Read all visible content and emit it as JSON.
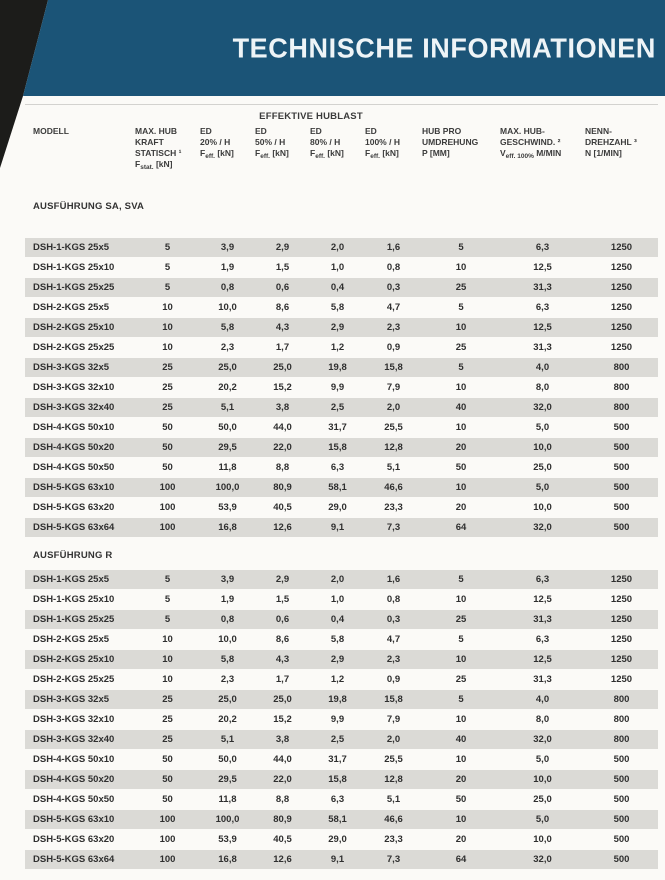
{
  "page": {
    "title": "TECHNISCHE INFORMATIONEN"
  },
  "colors": {
    "accent_blue": "#1b5477",
    "row_shade": "#dbdad6",
    "page_edge_black": "#1c1c1a"
  },
  "table": {
    "group_header": "EFFEKTIVE HUBLAST",
    "columns": {
      "modell": {
        "label": "MODELL"
      },
      "stat": {
        "lines": [
          "MAX. HUB",
          "KRAFT",
          "STATISCH ¹"
        ],
        "formula": {
          "base": "F",
          "sub": "stat.",
          "rest": " [kN]"
        }
      },
      "ed20": {
        "lines": [
          "ED",
          "20% / H"
        ],
        "formula": {
          "base": "F",
          "sub": "eff.",
          "rest": " [kN]"
        }
      },
      "ed50": {
        "lines": [
          "ED",
          "50% / H"
        ],
        "formula": {
          "base": "F",
          "sub": "eff.",
          "rest": " [kN]"
        }
      },
      "ed80": {
        "lines": [
          "ED",
          "80% / H"
        ],
        "formula": {
          "base": "F",
          "sub": "eff.",
          "rest": " [kN]"
        }
      },
      "ed100": {
        "lines": [
          "ED",
          "100% / H"
        ],
        "formula": {
          "base": "F",
          "sub": "eff.",
          "rest": " [kN]"
        }
      },
      "hub": {
        "lines": [
          "HUB PRO",
          "UMDREHUNG"
        ],
        "formula": {
          "base": "P [MM]",
          "sub": "",
          "rest": ""
        }
      },
      "speed": {
        "lines": [
          "MAX. HUB-",
          "GESCHWIND. ²"
        ],
        "formula": {
          "base": "V",
          "sub": "eff. 100%",
          "rest": " M/MIN"
        }
      },
      "nenn": {
        "lines": [
          "NENN-",
          "DREHZAHL ³"
        ],
        "formula": {
          "base": "N [1/MIN]",
          "sub": "",
          "rest": ""
        }
      }
    },
    "sections": [
      {
        "label": "AUSFÜHRUNG SA, SVA",
        "rows": [
          [
            "DSH-1-KGS 25x5",
            "5",
            "3,9",
            "2,9",
            "2,0",
            "1,6",
            "5",
            "6,3",
            "1250"
          ],
          [
            "DSH-1-KGS 25x10",
            "5",
            "1,9",
            "1,5",
            "1,0",
            "0,8",
            "10",
            "12,5",
            "1250"
          ],
          [
            "DSH-1-KGS 25x25",
            "5",
            "0,8",
            "0,6",
            "0,4",
            "0,3",
            "25",
            "31,3",
            "1250"
          ],
          [
            "DSH-2-KGS 25x5",
            "10",
            "10,0",
            "8,6",
            "5,8",
            "4,7",
            "5",
            "6,3",
            "1250"
          ],
          [
            "DSH-2-KGS 25x10",
            "10",
            "5,8",
            "4,3",
            "2,9",
            "2,3",
            "10",
            "12,5",
            "1250"
          ],
          [
            "DSH-2-KGS 25x25",
            "10",
            "2,3",
            "1,7",
            "1,2",
            "0,9",
            "25",
            "31,3",
            "1250"
          ],
          [
            "DSH-3-KGS 32x5",
            "25",
            "25,0",
            "25,0",
            "19,8",
            "15,8",
            "5",
            "4,0",
            "800"
          ],
          [
            "DSH-3-KGS 32x10",
            "25",
            "20,2",
            "15,2",
            "9,9",
            "7,9",
            "10",
            "8,0",
            "800"
          ],
          [
            "DSH-3-KGS 32x40",
            "25",
            "5,1",
            "3,8",
            "2,5",
            "2,0",
            "40",
            "32,0",
            "800"
          ],
          [
            "DSH-4-KGS 50x10",
            "50",
            "50,0",
            "44,0",
            "31,7",
            "25,5",
            "10",
            "5,0",
            "500"
          ],
          [
            "DSH-4-KGS 50x20",
            "50",
            "29,5",
            "22,0",
            "15,8",
            "12,8",
            "20",
            "10,0",
            "500"
          ],
          [
            "DSH-4-KGS 50x50",
            "50",
            "11,8",
            "8,8",
            "6,3",
            "5,1",
            "50",
            "25,0",
            "500"
          ],
          [
            "DSH-5-KGS 63x10",
            "100",
            "100,0",
            "80,9",
            "58,1",
            "46,6",
            "10",
            "5,0",
            "500"
          ],
          [
            "DSH-5-KGS 63x20",
            "100",
            "53,9",
            "40,5",
            "29,0",
            "23,3",
            "20",
            "10,0",
            "500"
          ],
          [
            "DSH-5-KGS 63x64",
            "100",
            "16,8",
            "12,6",
            "9,1",
            "7,3",
            "64",
            "32,0",
            "500"
          ]
        ]
      },
      {
        "label": "AUSFÜHRUNG R",
        "rows": [
          [
            "DSH-1-KGS 25x5",
            "5",
            "3,9",
            "2,9",
            "2,0",
            "1,6",
            "5",
            "6,3",
            "1250"
          ],
          [
            "DSH-1-KGS 25x10",
            "5",
            "1,9",
            "1,5",
            "1,0",
            "0,8",
            "10",
            "12,5",
            "1250"
          ],
          [
            "DSH-1-KGS 25x25",
            "5",
            "0,8",
            "0,6",
            "0,4",
            "0,3",
            "25",
            "31,3",
            "1250"
          ],
          [
            "DSH-2-KGS 25x5",
            "10",
            "10,0",
            "8,6",
            "5,8",
            "4,7",
            "5",
            "6,3",
            "1250"
          ],
          [
            "DSH-2-KGS 25x10",
            "10",
            "5,8",
            "4,3",
            "2,9",
            "2,3",
            "10",
            "12,5",
            "1250"
          ],
          [
            "DSH-2-KGS 25x25",
            "10",
            "2,3",
            "1,7",
            "1,2",
            "0,9",
            "25",
            "31,3",
            "1250"
          ],
          [
            "DSH-3-KGS 32x5",
            "25",
            "25,0",
            "25,0",
            "19,8",
            "15,8",
            "5",
            "4,0",
            "800"
          ],
          [
            "DSH-3-KGS 32x10",
            "25",
            "20,2",
            "15,2",
            "9,9",
            "7,9",
            "10",
            "8,0",
            "800"
          ],
          [
            "DSH-3-KGS 32x40",
            "25",
            "5,1",
            "3,8",
            "2,5",
            "2,0",
            "40",
            "32,0",
            "800"
          ],
          [
            "DSH-4-KGS 50x10",
            "50",
            "50,0",
            "44,0",
            "31,7",
            "25,5",
            "10",
            "5,0",
            "500"
          ],
          [
            "DSH-4-KGS 50x20",
            "50",
            "29,5",
            "22,0",
            "15,8",
            "12,8",
            "20",
            "10,0",
            "500"
          ],
          [
            "DSH-4-KGS 50x50",
            "50",
            "11,8",
            "8,8",
            "6,3",
            "5,1",
            "50",
            "25,0",
            "500"
          ],
          [
            "DSH-5-KGS 63x10",
            "100",
            "100,0",
            "80,9",
            "58,1",
            "46,6",
            "10",
            "5,0",
            "500"
          ],
          [
            "DSH-5-KGS 63x20",
            "100",
            "53,9",
            "40,5",
            "29,0",
            "23,3",
            "20",
            "10,0",
            "500"
          ],
          [
            "DSH-5-KGS 63x64",
            "100",
            "16,8",
            "12,6",
            "9,1",
            "7,3",
            "64",
            "32,0",
            "500"
          ]
        ]
      }
    ]
  }
}
